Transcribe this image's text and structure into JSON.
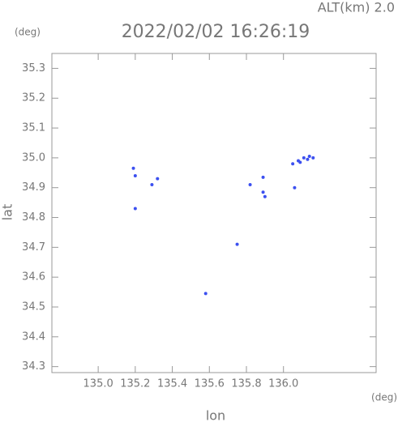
{
  "chart_data": {
    "type": "scatter",
    "title": "2022/02/02 16:26:19",
    "annotations": [
      "ALT(km) 2.0",
      "(deg)",
      "(deg)"
    ],
    "x_label": "lon",
    "y_label": "lat",
    "color": "#3c50f0",
    "x": [
      135.19,
      135.2,
      135.2,
      135.29,
      135.32,
      135.82,
      135.89,
      135.89,
      135.9,
      136.06,
      135.75,
      135.58,
      136.05,
      136.08,
      136.11,
      136.14,
      136.16,
      136.09,
      136.13
    ],
    "values": [
      34.965,
      34.94,
      34.83,
      34.91,
      34.93,
      34.91,
      34.935,
      34.885,
      34.87,
      34.9,
      34.71,
      34.545,
      34.98,
      34.99,
      35.0,
      35.005,
      35.0,
      34.985,
      34.995
    ],
    "xlim": [
      134.75,
      136.5
    ],
    "ylim": [
      34.28,
      35.35
    ],
    "xticks": [
      {
        "value": 135,
        "label": "135.0"
      },
      135.2,
      135.4,
      135.6,
      135.8,
      {
        "value": 136,
        "label": "136.0"
      }
    ],
    "yticks": [
      35.3,
      35.2,
      35.1,
      {
        "value": 35,
        "label": "35.0"
      },
      34.9,
      34.8,
      34.7,
      34.6,
      34.5,
      34.4,
      34.3
    ]
  }
}
